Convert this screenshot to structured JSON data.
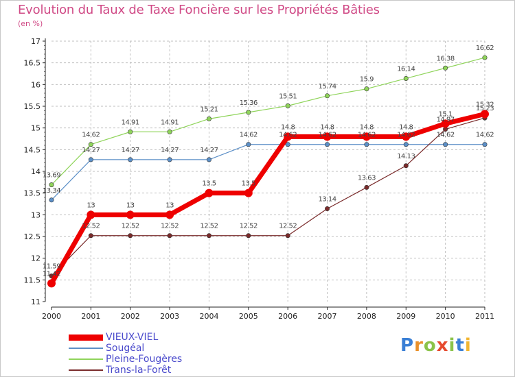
{
  "title": "Evolution du Taux de Taxe Foncière sur les Propriétés Bâties",
  "subtitle": "(en %)",
  "colors": {
    "title": "#d04a86",
    "grid": "#bfbfbf",
    "axis": "#222222",
    "legend_text": "#4a4acc"
  },
  "chart_data": {
    "type": "line",
    "title": "Evolution du Taux de Taxe Foncière sur les Propriétés Bâties",
    "ylabel": "(en %)",
    "xlabel": "",
    "ylim": [
      11,
      17
    ],
    "yticks": [
      "11",
      "11.5",
      "12",
      "12.5",
      "13",
      "13.5",
      "14",
      "14.5",
      "15",
      "15.5",
      "16",
      "16.5",
      "17"
    ],
    "categories": [
      "2000",
      "2001",
      "2002",
      "2003",
      "2004",
      "2005",
      "2006",
      "2007",
      "2008",
      "2009",
      "2010",
      "2011"
    ],
    "series": [
      {
        "name": "VIEUX-VIEL",
        "color": "#ee0000",
        "values": [
          11.42,
          13,
          13,
          13,
          13.5,
          13.5,
          14.8,
          14.8,
          14.8,
          14.8,
          15.1,
          15.32
        ],
        "labels": [
          "11.42",
          "13",
          "13",
          "13",
          "13.5",
          "13.5",
          "14.8",
          "14.8",
          "14.8",
          "14.8",
          "15.1",
          "15.32"
        ]
      },
      {
        "name": "Sougéal",
        "color": "#5b8fc7",
        "values": [
          13.34,
          14.27,
          14.27,
          14.27,
          14.27,
          14.62,
          14.62,
          14.62,
          14.62,
          14.62,
          14.62,
          14.62
        ],
        "labels": [
          "13.34",
          "14.27",
          "14.27",
          "14.27",
          "14.27",
          "14.62",
          "14.62",
          "14.62",
          "14.62",
          "14.62",
          "14.62",
          "14.62"
        ]
      },
      {
        "name": "Pleine-Fougères",
        "color": "#8fd45a",
        "values": [
          13.69,
          14.62,
          14.91,
          14.91,
          15.21,
          15.36,
          15.51,
          15.74,
          15.9,
          16.14,
          16.38,
          16.62
        ],
        "labels": [
          "13.69",
          "14.62",
          "14.91",
          "14.91",
          "15.21",
          "15.36",
          "15.51",
          "15.74",
          "15.9",
          "16.14",
          "16.38",
          "16.62"
        ]
      },
      {
        "name": "Trans-la-Forêt",
        "color": "#7a2b2b",
        "values": [
          11.59,
          12.52,
          12.52,
          12.52,
          12.52,
          12.52,
          12.52,
          13.14,
          13.63,
          14.13,
          14.97,
          15.23
        ],
        "labels": [
          "11.59",
          "12.52",
          "12.52",
          "12.52",
          "12.52",
          "12.52",
          "12.52",
          "13.14",
          "13.63",
          "14.13",
          "14.97",
          "15.23"
        ]
      }
    ],
    "legend_position": "bottom-left"
  },
  "logo": {
    "letters": [
      "P",
      "r",
      "o",
      "x",
      "i",
      "t",
      "i"
    ],
    "colors": [
      "#3a7fd5",
      "#e9902a",
      "#8bc34a",
      "#e64a2e",
      "#8bc34a",
      "#3a7fd5",
      "#f2b632"
    ]
  }
}
